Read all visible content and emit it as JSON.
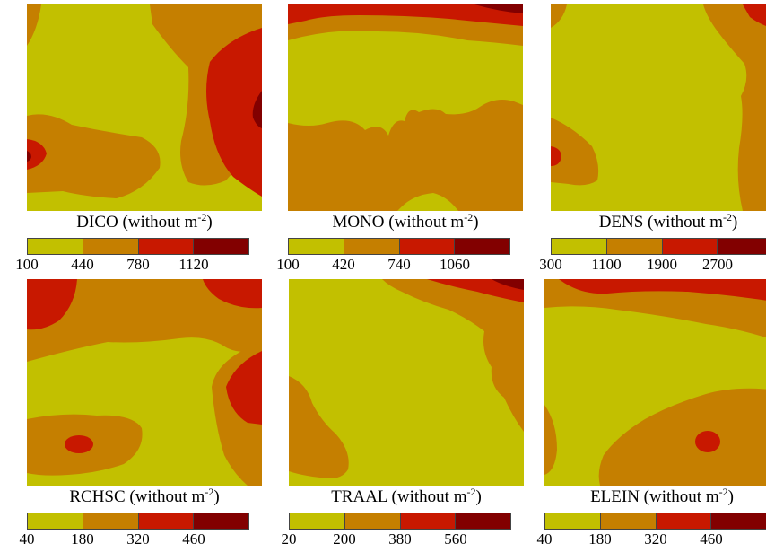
{
  "colors": {
    "level1": "#c2c000",
    "level2": "#c57f00",
    "level3": "#c81800",
    "level4": "#820000"
  },
  "panels": [
    {
      "title": "DICO (without m",
      "exponent": "-2",
      "title_close": ")",
      "ticks": [
        "100",
        "440",
        "780",
        "1120"
      ]
    },
    {
      "title": "MONO (without m",
      "exponent": "-2",
      "title_close": ")",
      "ticks": [
        "100",
        "420",
        "740",
        "1060"
      ]
    },
    {
      "title": "DENS (without m",
      "exponent": "-2",
      "title_close": ")",
      "ticks": [
        "300",
        "1100",
        "1900",
        "2700"
      ]
    },
    {
      "title": "RCHSC (without m",
      "exponent": "-2",
      "title_close": ")",
      "ticks": [
        "40",
        "180",
        "320",
        "460"
      ]
    },
    {
      "title": "TRAAL (without m",
      "exponent": "-2",
      "title_close": ")",
      "ticks": [
        "20",
        "200",
        "380",
        "560"
      ]
    },
    {
      "title": "ELEIN (without m",
      "exponent": "-2",
      "title_close": ")",
      "ticks": [
        "40",
        "180",
        "320",
        "460"
      ]
    }
  ]
}
